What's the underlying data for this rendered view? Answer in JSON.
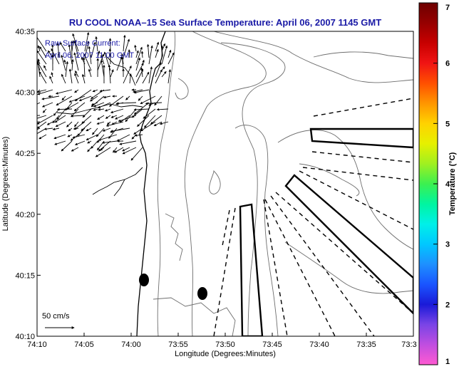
{
  "chart_data": {
    "type": "map",
    "title": "RU COOL  NOAA–15  Sea Surface Temperature:  April 06, 2007 1145 GMT",
    "xlabel": "Longitude (Degrees:Minutes)",
    "ylabel": "Latitude (Degrees:Minutes)",
    "x_ticks": [
      "74:10",
      "74:05",
      "74:00",
      "73:55",
      "73:50",
      "73:45",
      "73:40",
      "73:35",
      "73:3"
    ],
    "y_ticks": [
      "40:10",
      "40:15",
      "40:20",
      "40:25",
      "40:30",
      "40:35"
    ],
    "xlim_minutes_west": [
      10,
      -30
    ],
    "ylim_minutes_north": [
      10,
      35
    ],
    "annotation_lines": [
      "Raw Surface Current:",
      "April 06, 2007 11:00 GMT"
    ],
    "scale_label": "50 cm/s",
    "colorbar": {
      "label": "Temperature (°C)",
      "ticks": [
        "1",
        "2",
        "3",
        "4",
        "5",
        "6",
        "7"
      ],
      "min": 1,
      "max": 7,
      "colors": [
        "#ff5ad2",
        "#c04ee0",
        "#7a44e6",
        "#1a1ad8",
        "#1a55ff",
        "#1e90ff",
        "#00c8ff",
        "#00f0e8",
        "#00f5a0",
        "#3cf050",
        "#a0f020",
        "#e6f000",
        "#ffd200",
        "#ff9600",
        "#ff5000",
        "#f01414",
        "#c80000",
        "#960000",
        "#6e0000"
      ]
    }
  }
}
